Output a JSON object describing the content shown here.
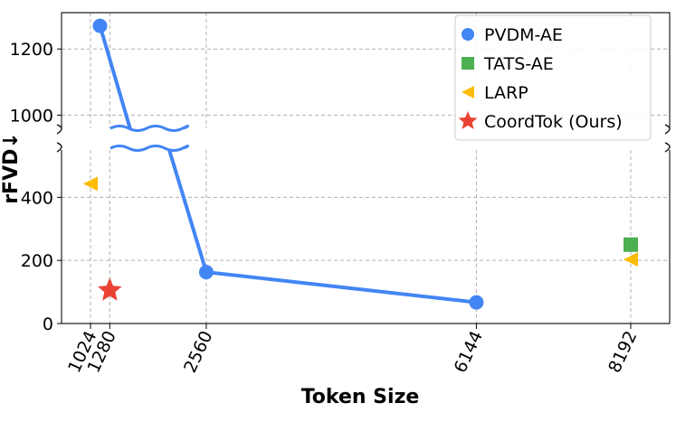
{
  "chart_data": {
    "type": "scatter",
    "xlabel": "Token Size",
    "ylabel": "rFVD↓",
    "x_ticks": [
      1024,
      1280,
      2560,
      6144,
      8192
    ],
    "y_ticks_lower": [
      0,
      200,
      400
    ],
    "y_ticks_upper": [
      1000,
      1200
    ],
    "ylim_lower": [
      0,
      550
    ],
    "ylim_upper": [
      960,
      1310
    ],
    "broken_y_axis": true,
    "grid": true,
    "legend_position": "top-right",
    "series": [
      {
        "name": "PVDM-AE",
        "marker": "circle",
        "color": "#4285f4",
        "connected": true,
        "points": [
          {
            "x": 1150,
            "y": 1270
          },
          {
            "x": 1600,
            "y": 920
          },
          {
            "x": 2560,
            "y": 163
          },
          {
            "x": 6144,
            "y": 67
          }
        ]
      },
      {
        "name": "TATS-AE",
        "marker": "square",
        "color": "#4caf50",
        "connected": false,
        "points": [
          {
            "x": 8192,
            "y": 250
          }
        ]
      },
      {
        "name": "LARP",
        "marker": "triangle-left",
        "color": "#fbbc04",
        "connected": false,
        "points": [
          {
            "x": 1024,
            "y": 443
          },
          {
            "x": 8192,
            "y": 203
          }
        ]
      },
      {
        "name": "CoordTok (Ours)",
        "marker": "star",
        "color": "#ea4335",
        "connected": false,
        "points": [
          {
            "x": 1280,
            "y": 105
          }
        ]
      }
    ]
  }
}
